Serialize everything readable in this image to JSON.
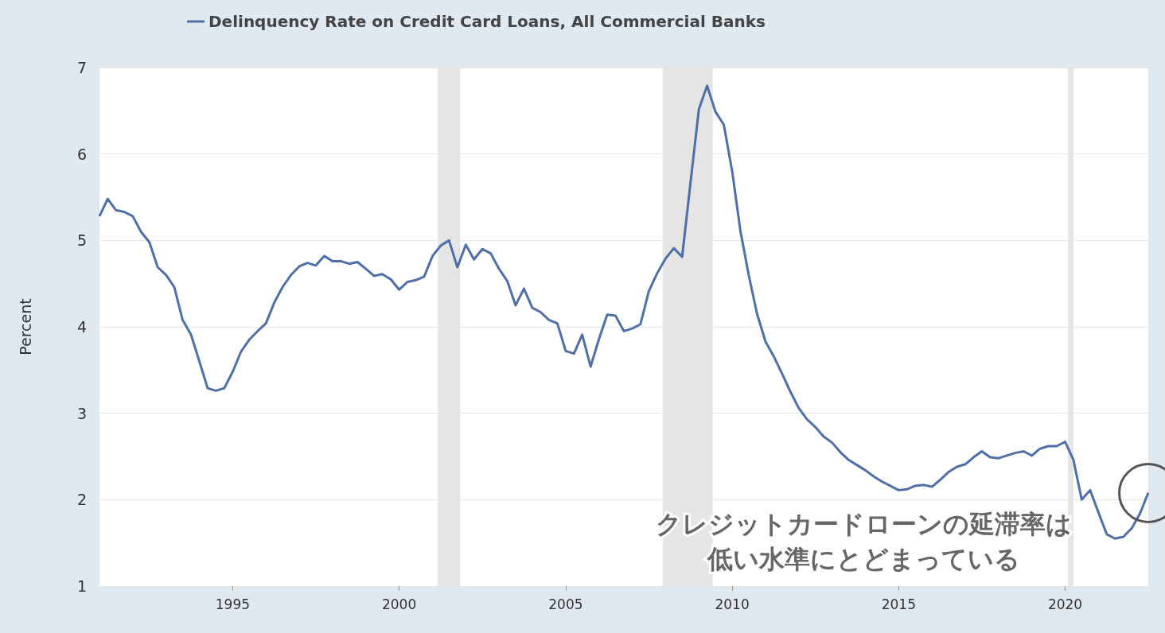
{
  "chart_data": {
    "type": "line",
    "ylabel": "Percent",
    "legend": "top left",
    "grid": "y",
    "marker": "none",
    "line_style": "solid",
    "xlim": [
      "1991-01",
      "2022-07"
    ],
    "ylim": [
      1,
      7
    ],
    "yticks": [
      1,
      2,
      3,
      4,
      5,
      6,
      7
    ],
    "xticks": [
      {
        "value": "1995",
        "label": "1995"
      },
      {
        "value": "2000",
        "label": "2000"
      },
      {
        "value": "2005",
        "label": "2005"
      },
      {
        "value": "2010",
        "label": "2010"
      },
      {
        "value": "2015",
        "label": "2015"
      },
      {
        "value": "2020",
        "label": "2020"
      }
    ],
    "bands": [
      {
        "axis": "x",
        "from": "2001-03",
        "to": "2001-11",
        "label": null,
        "color": "#e5e5e5"
      },
      {
        "axis": "x",
        "from": "2007-12",
        "to": "2009-06",
        "label": null,
        "color": "#e5e5e5"
      },
      {
        "axis": "x",
        "from": "2020-02",
        "to": "2020-04",
        "label": null,
        "color": "#e5e5e5"
      }
    ],
    "annotations": [
      "クレジットカードローンの延滞率は",
      "低い水準にとどまっている"
    ],
    "series": [
      {
        "name": "Delinquency Rate on Credit Card Loans, All Commercial Banks",
        "color": "#4e6fa8",
        "x": [
          "1991-01",
          "1991-04",
          "1991-07",
          "1991-10",
          "1992-01",
          "1992-04",
          "1992-07",
          "1992-10",
          "1993-01",
          "1993-04",
          "1993-07",
          "1993-10",
          "1994-01",
          "1994-04",
          "1994-07",
          "1994-10",
          "1995-01",
          "1995-04",
          "1995-07",
          "1995-10",
          "1996-01",
          "1996-04",
          "1996-07",
          "1996-10",
          "1997-01",
          "1997-04",
          "1997-07",
          "1997-10",
          "1998-01",
          "1998-04",
          "1998-07",
          "1998-10",
          "1999-01",
          "1999-04",
          "1999-07",
          "1999-10",
          "2000-01",
          "2000-04",
          "2000-07",
          "2000-10",
          "2001-01",
          "2001-04",
          "2001-07",
          "2001-10",
          "2002-01",
          "2002-04",
          "2002-07",
          "2002-10",
          "2003-01",
          "2003-04",
          "2003-07",
          "2003-10",
          "2004-01",
          "2004-04",
          "2004-07",
          "2004-10",
          "2005-01",
          "2005-04",
          "2005-07",
          "2005-10",
          "2006-01",
          "2006-04",
          "2006-07",
          "2006-10",
          "2007-01",
          "2007-04",
          "2007-07",
          "2007-10",
          "2008-01",
          "2008-04",
          "2008-07",
          "2008-10",
          "2009-01",
          "2009-04",
          "2009-07",
          "2009-10",
          "2010-01",
          "2010-04",
          "2010-07",
          "2010-10",
          "2011-01",
          "2011-04",
          "2011-07",
          "2011-10",
          "2012-01",
          "2012-04",
          "2012-07",
          "2012-10",
          "2013-01",
          "2013-04",
          "2013-07",
          "2013-10",
          "2014-01",
          "2014-04",
          "2014-07",
          "2014-10",
          "2015-01",
          "2015-04",
          "2015-07",
          "2015-10",
          "2016-01",
          "2016-04",
          "2016-07",
          "2016-10",
          "2017-01",
          "2017-04",
          "2017-07",
          "2017-10",
          "2018-01",
          "2018-04",
          "2018-07",
          "2018-10",
          "2019-01",
          "2019-04",
          "2019-07",
          "2019-10",
          "2020-01",
          "2020-04",
          "2020-07",
          "2020-10",
          "2021-01",
          "2021-04",
          "2021-07",
          "2021-10",
          "2022-01",
          "2022-04",
          "2022-07"
        ],
        "values": [
          5.28,
          5.48,
          5.35,
          5.33,
          5.28,
          5.1,
          4.98,
          4.69,
          4.6,
          4.46,
          4.08,
          3.91,
          3.6,
          3.29,
          3.26,
          3.29,
          3.48,
          3.71,
          3.85,
          3.95,
          4.04,
          4.28,
          4.46,
          4.6,
          4.7,
          4.74,
          4.71,
          4.82,
          4.76,
          4.76,
          4.73,
          4.75,
          4.67,
          4.59,
          4.61,
          4.55,
          4.43,
          4.52,
          4.54,
          4.58,
          4.82,
          4.94,
          5.0,
          4.69,
          4.95,
          4.78,
          4.9,
          4.85,
          4.67,
          4.53,
          4.25,
          4.44,
          4.22,
          4.17,
          4.08,
          4.04,
          3.72,
          3.69,
          3.91,
          3.54,
          3.86,
          4.14,
          4.13,
          3.95,
          3.98,
          4.03,
          4.41,
          4.62,
          4.79,
          4.91,
          4.81,
          5.67,
          6.52,
          6.79,
          6.49,
          6.34,
          5.8,
          5.11,
          4.6,
          4.15,
          3.83,
          3.66,
          3.46,
          3.25,
          3.06,
          2.93,
          2.84,
          2.73,
          2.66,
          2.55,
          2.46,
          2.4,
          2.34,
          2.27,
          2.21,
          2.16,
          2.11,
          2.12,
          2.16,
          2.17,
          2.15,
          2.23,
          2.32,
          2.38,
          2.41,
          2.49,
          2.56,
          2.49,
          2.48,
          2.51,
          2.54,
          2.56,
          2.51,
          2.59,
          2.62,
          2.62,
          2.67,
          2.46,
          2.0,
          2.11,
          1.85,
          1.6,
          1.55,
          1.57,
          1.67,
          1.84,
          2.08
        ]
      }
    ]
  }
}
